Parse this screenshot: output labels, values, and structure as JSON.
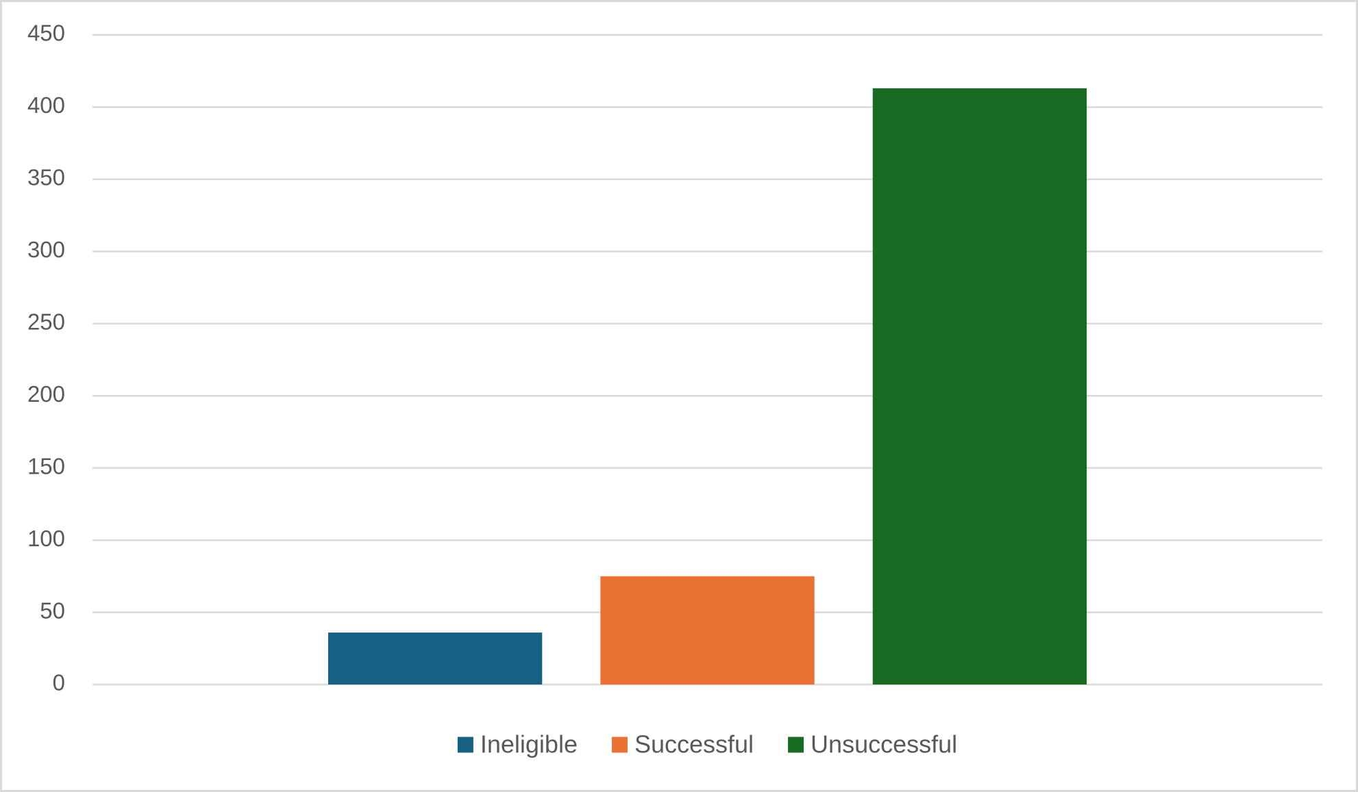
{
  "chart_data": {
    "type": "bar",
    "categories": [
      null
    ],
    "series": [
      {
        "name": "Ineligible",
        "color": "#166083",
        "values": [
          36
        ]
      },
      {
        "name": "Successful",
        "color": "#e97132",
        "values": [
          75
        ]
      },
      {
        "name": "Unsuccessful",
        "color": "#196b24",
        "values": [
          413
        ]
      }
    ],
    "ylim": [
      0,
      450
    ],
    "yticks": [
      0,
      50,
      100,
      150,
      200,
      250,
      300,
      350,
      400,
      450
    ],
    "grid": true,
    "legend": "bottom"
  }
}
